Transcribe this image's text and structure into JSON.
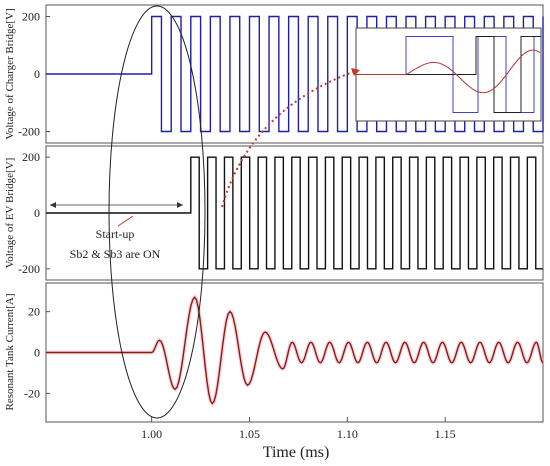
{
  "chart_data": [
    {
      "type": "line",
      "ylabel": "Voltage of Charger Bridge[V]",
      "ylim": [
        -240,
        240
      ],
      "yticks": [
        200,
        0,
        -200
      ],
      "series": [
        {
          "color": "#1f1fa8",
          "shape": "square-wave",
          "before_start_level": 0,
          "start_ms": 1.0,
          "amplitude": 200,
          "period_ms": 0.01
        }
      ],
      "inset": {
        "series": [
          {
            "color": "#4040c8",
            "shape": "square-wave"
          },
          {
            "color": "#222222",
            "shape": "square-wave"
          },
          {
            "color": "#b03a2e",
            "shape": "sinusoid"
          }
        ]
      }
    },
    {
      "type": "line",
      "ylabel": "Voltage of EV Bridge[V]",
      "ylim": [
        -240,
        240
      ],
      "yticks": [
        200,
        0,
        -200
      ],
      "series": [
        {
          "color": "#111111",
          "shape": "square-wave",
          "before_start_level": 0,
          "start_ms": 1.02,
          "amplitude": 200,
          "period_ms": 0.0086
        }
      ],
      "annotations": [
        {
          "text": "Start-up"
        },
        {
          "text": "Sb2 & Sb3 are ON"
        }
      ]
    },
    {
      "type": "line",
      "ylabel": "Resonant Tank Current[A]",
      "ylim": [
        -34,
        34
      ],
      "yticks": [
        20,
        0,
        -20
      ],
      "series": [
        {
          "color": "#8b1a10",
          "shape": "damped-oscillation",
          "start_ms": 1.0,
          "peaks": [
            {
              "x": 1.004,
              "y": 6
            },
            {
              "x": 1.012,
              "y": -18
            },
            {
              "x": 1.022,
              "y": 27
            },
            {
              "x": 1.031,
              "y": -25
            },
            {
              "x": 1.04,
              "y": 20
            },
            {
              "x": 1.049,
              "y": -16
            },
            {
              "x": 1.058,
              "y": 10
            },
            {
              "x": 1.067,
              "y": -8
            }
          ],
          "steady_amplitude": 5,
          "steady_period_ms": 0.0096
        }
      ]
    }
  ],
  "x_axis": {
    "label": "Time (ms)",
    "ticks": [
      "1.00",
      "1.05",
      "1.10",
      "1.15"
    ],
    "tick_values": [
      1.0,
      1.05,
      1.1,
      1.15
    ],
    "xlim": [
      0.946,
      1.2
    ]
  }
}
